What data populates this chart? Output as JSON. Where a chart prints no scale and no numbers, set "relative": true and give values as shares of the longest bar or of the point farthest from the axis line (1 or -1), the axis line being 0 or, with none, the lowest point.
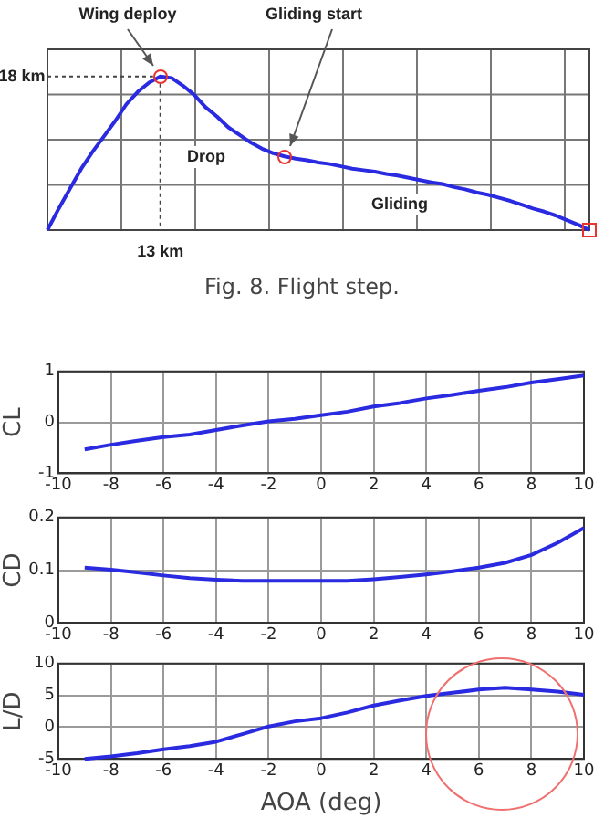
{
  "chart_data": [
    {
      "type": "line",
      "relative": true,
      "grid": true,
      "categories": [
        null,
        null,
        null,
        null,
        null,
        null,
        null,
        null,
        null,
        null,
        null,
        null,
        null,
        null,
        null,
        null,
        null,
        null,
        null,
        null,
        null,
        null,
        null,
        null,
        null,
        null,
        null,
        null,
        null,
        null,
        null,
        null,
        null,
        null,
        null,
        null,
        null,
        null,
        null,
        null,
        null,
        null,
        null,
        null,
        null,
        null,
        null,
        null,
        null
      ],
      "series": [
        {
          "color": "#2a2ae0",
          "values": [
            0,
            0.14,
            0.27,
            0.4,
            0.51,
            0.61,
            0.71,
            0.82,
            0.9,
            0.96,
            1,
            0.99,
            0.94,
            0.88,
            0.8,
            0.74,
            0.67,
            0.62,
            0.57,
            0.53,
            0.5,
            0.48,
            0.465,
            0.455,
            0.44,
            0.43,
            0.415,
            0.4,
            0.39,
            0.38,
            0.365,
            0.355,
            0.34,
            0.325,
            0.31,
            0.3,
            0.28,
            0.265,
            0.245,
            0.23,
            0.21,
            0.19,
            0.165,
            0.14,
            0.12,
            0.095,
            0.065,
            0.035,
            0
          ]
        }
      ],
      "annotations": [
        "Wing deploy",
        "Gliding start",
        "18 km",
        "13 km",
        "Drop",
        "Gliding",
        "Fig. 8. Flight step."
      ]
    },
    {
      "type": "line",
      "ylabel": "CL",
      "grid": true,
      "xlim": [
        -10,
        10
      ],
      "xticks": [
        -10,
        -8,
        -6,
        -4,
        -2,
        0,
        2,
        4,
        6,
        8,
        10
      ],
      "ylim": [
        -1,
        1
      ],
      "yticks": [
        -1,
        0,
        1
      ],
      "x": [
        -9,
        -8,
        -7,
        -6,
        -5,
        -4,
        -3,
        -2,
        -1,
        0,
        1,
        2,
        3,
        4,
        5,
        6,
        7,
        8,
        9,
        10
      ],
      "series": [
        {
          "color": "#2a2ae0",
          "values": [
            -0.53,
            -0.44,
            -0.36,
            -0.29,
            -0.24,
            -0.15,
            -0.06,
            0.02,
            0.07,
            0.14,
            0.21,
            0.31,
            0.38,
            0.47,
            0.54,
            0.62,
            0.69,
            0.78,
            0.85,
            0.92
          ]
        }
      ]
    },
    {
      "type": "line",
      "ylabel": "CD",
      "grid": true,
      "xlim": [
        -10,
        10
      ],
      "xticks": [
        -10,
        -8,
        -6,
        -4,
        -2,
        0,
        2,
        4,
        6,
        8,
        10
      ],
      "ylim": [
        0,
        0.2
      ],
      "yticks": [
        0,
        0.1,
        0.2
      ],
      "x": [
        -9,
        -8,
        -7,
        -6,
        -5,
        -4,
        -3,
        -2,
        -1,
        0,
        1,
        2,
        3,
        4,
        5,
        6,
        7,
        8,
        9,
        10
      ],
      "series": [
        {
          "color": "#2a2ae0",
          "values": [
            0.105,
            0.101,
            0.096,
            0.09,
            0.085,
            0.082,
            0.08,
            0.08,
            0.08,
            0.08,
            0.08,
            0.083,
            0.087,
            0.092,
            0.098,
            0.105,
            0.114,
            0.129,
            0.152,
            0.18
          ]
        }
      ]
    },
    {
      "type": "line",
      "ylabel": "L/D",
      "xlabel": "AOA (deg)",
      "grid": true,
      "xlim": [
        -10,
        10
      ],
      "xticks": [
        -10,
        -8,
        -6,
        -4,
        -2,
        0,
        2,
        4,
        6,
        8,
        10
      ],
      "ylim": [
        -5,
        10
      ],
      "yticks": [
        -5,
        0,
        5,
        10
      ],
      "x": [
        -9,
        -8,
        -7,
        -6,
        -5,
        -4,
        -3,
        -2,
        -1,
        0,
        1,
        2,
        3,
        4,
        5,
        6,
        7,
        8,
        9,
        10
      ],
      "series": [
        {
          "color": "#2a2ae0",
          "values": [
            -5,
            -4.6,
            -4.1,
            -3.5,
            -3,
            -2.3,
            -1.1,
            0.1,
            0.9,
            1.4,
            2.3,
            3.4,
            4.2,
            4.9,
            5.4,
            5.9,
            6.2,
            5.9,
            5.6,
            5.1
          ]
        }
      ]
    }
  ]
}
